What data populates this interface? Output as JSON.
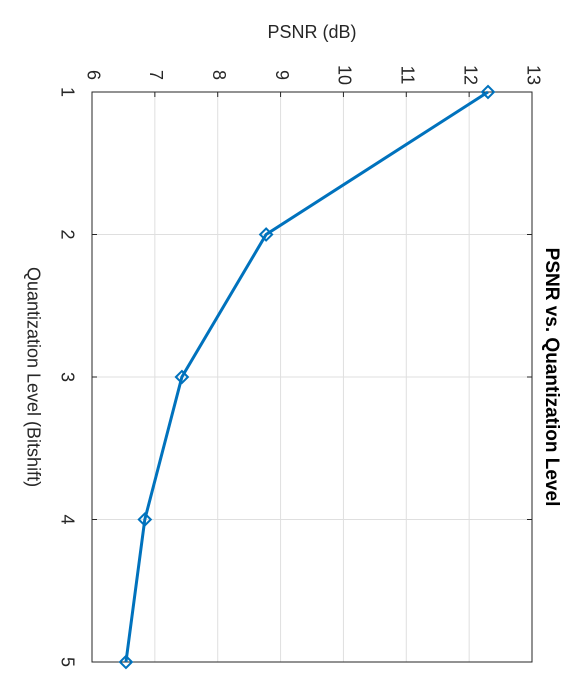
{
  "chart_data": {
    "type": "line",
    "title": "PSNR vs. Quantization Level",
    "xlabel": "Quantization Level (Bitshift)",
    "ylabel": "PSNR (dB)",
    "x": [
      1,
      2,
      3,
      4,
      5
    ],
    "xlim": [
      1,
      5
    ],
    "xticks": [
      1,
      2,
      3,
      4,
      5
    ],
    "ylim": [
      6,
      13
    ],
    "yticks": [
      6,
      7,
      8,
      9,
      10,
      11,
      12,
      13
    ],
    "grid": true,
    "series": [
      {
        "name": "PSNR",
        "color": "#0072BD",
        "values": [
          12.3,
          8.77,
          7.43,
          6.84,
          6.54
        ]
      }
    ]
  }
}
